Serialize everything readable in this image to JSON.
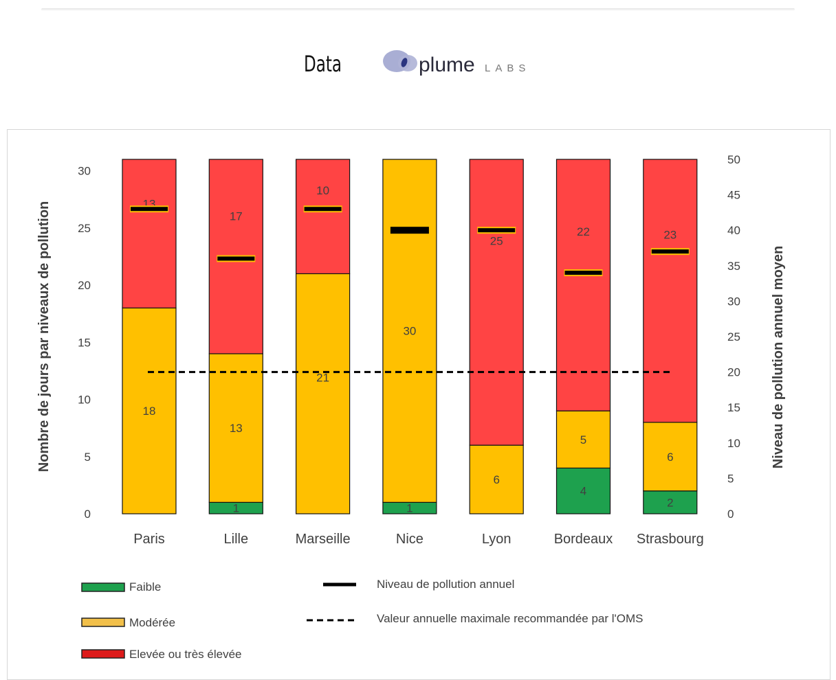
{
  "header": {
    "title": "Data",
    "logo_text": "plume",
    "logo_suffix": "LABS"
  },
  "chart_data": {
    "type": "bar",
    "stacked": true,
    "categories": [
      "Paris",
      "Lille",
      "Marseille",
      "Nice",
      "Lyon",
      "Bordeaux",
      "Strasbourg"
    ],
    "series": [
      {
        "name": "Faible",
        "color": "#1ea14e",
        "values": [
          0,
          1,
          0,
          1,
          0,
          4,
          2
        ]
      },
      {
        "name": "Modérée",
        "color": "#ffc000",
        "values": [
          18,
          13,
          21,
          30,
          6,
          5,
          6
        ]
      },
      {
        "name": "Elevée ou très élevée",
        "color": "#ff4444",
        "values": [
          13,
          17,
          10,
          0,
          25,
          22,
          23
        ]
      }
    ],
    "annual_level": {
      "name": "Niveau de pollution annuel",
      "values": [
        43,
        36,
        43,
        40,
        40,
        34,
        37
      ],
      "axis": "right"
    },
    "who_limit": {
      "name": "Valeur annuelle maximale recommandée par l'OMS",
      "value": 20,
      "axis": "right"
    },
    "ylabel": "Nombre de jours par niveaux de pollution",
    "y2label": "Niveau de pollution annuel moyen",
    "ylim": [
      0,
      31
    ],
    "y2lim": [
      0,
      50
    ],
    "yticks": [
      "0",
      "5",
      "10",
      "15",
      "20",
      "25",
      "30"
    ],
    "y2ticks": [
      "0",
      "5",
      "10",
      "15",
      "20",
      "25",
      "30",
      "35",
      "40",
      "45",
      "50"
    ],
    "grid": false,
    "legend_position": "bottom"
  }
}
